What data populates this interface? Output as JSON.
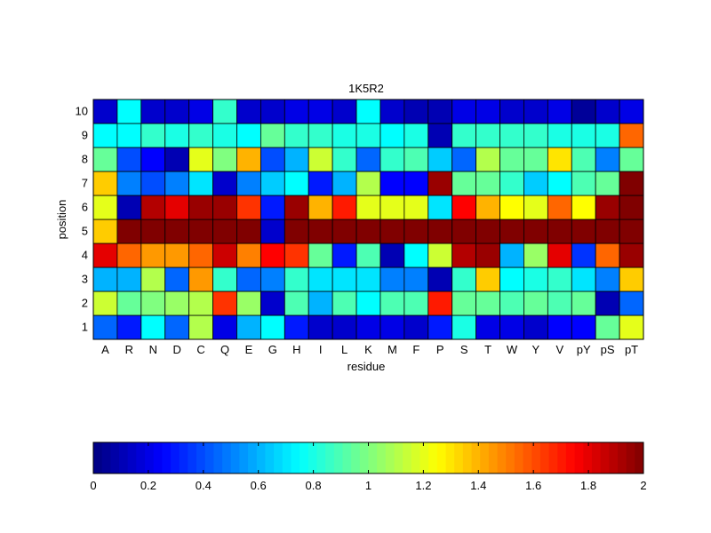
{
  "chart_data": {
    "type": "heatmap",
    "title": "1K5R2",
    "xlabel": "residue",
    "ylabel": "position",
    "x_categories": [
      "A",
      "R",
      "N",
      "D",
      "C",
      "Q",
      "E",
      "G",
      "H",
      "I",
      "L",
      "K",
      "M",
      "F",
      "P",
      "S",
      "T",
      "W",
      "Y",
      "V",
      "pY",
      "pS",
      "pT"
    ],
    "y_categories": [
      "1",
      "2",
      "3",
      "4",
      "5",
      "6",
      "7",
      "8",
      "9",
      "10"
    ],
    "value_range": [
      0,
      2
    ],
    "colormap": "jet",
    "colorbar": {
      "orientation": "horizontal",
      "position": "bottom",
      "ticks": [
        0,
        0.2,
        0.4,
        0.6,
        0.8,
        1,
        1.2,
        1.4,
        1.6,
        1.8,
        2
      ],
      "tick_labels": [
        "0",
        "0.2",
        "0.4",
        "0.6",
        "0.8",
        "1",
        "1.2",
        "1.4",
        "1.6",
        "1.8",
        "2"
      ]
    },
    "values": [
      [
        0.45,
        0.3,
        0.75,
        0.45,
        1.1,
        0.2,
        0.6,
        0.75,
        0.3,
        0.15,
        0.15,
        0.2,
        0.2,
        0.15,
        0.3,
        0.8,
        0.2,
        0.2,
        0.15,
        0.25,
        0.25,
        0.95,
        1.2
      ],
      [
        1.15,
        0.95,
        1.0,
        1.05,
        1.1,
        1.65,
        1.05,
        0.15,
        0.9,
        0.6,
        0.9,
        0.75,
        0.9,
        0.9,
        1.7,
        0.95,
        0.95,
        0.9,
        0.95,
        0.9,
        0.95,
        0.1,
        0.45
      ],
      [
        0.6,
        0.6,
        1.1,
        0.45,
        1.45,
        0.85,
        0.45,
        0.5,
        0.85,
        0.7,
        0.7,
        0.7,
        0.5,
        0.5,
        0.1,
        0.85,
        1.35,
        0.75,
        0.8,
        0.85,
        0.7,
        0.5,
        1.35
      ],
      [
        1.8,
        1.55,
        1.45,
        1.45,
        1.55,
        1.85,
        1.5,
        1.75,
        1.65,
        0.95,
        0.3,
        0.9,
        0.1,
        0.75,
        1.15,
        1.9,
        1.95,
        0.6,
        1.05,
        1.8,
        0.35,
        1.55,
        1.95
      ],
      [
        1.35,
        2.0,
        2.0,
        2.0,
        2.0,
        2.0,
        2.0,
        0.15,
        2.0,
        2.0,
        2.0,
        2.0,
        2.0,
        2.0,
        2.0,
        2.0,
        2.0,
        2.0,
        2.0,
        2.0,
        2.0,
        2.0,
        2.0
      ],
      [
        1.2,
        0.1,
        1.9,
        1.8,
        1.95,
        1.95,
        1.65,
        0.3,
        1.95,
        1.4,
        1.7,
        1.2,
        1.2,
        1.2,
        0.7,
        1.75,
        1.4,
        1.25,
        1.2,
        1.55,
        1.25,
        1.95,
        2.0
      ],
      [
        1.35,
        0.5,
        0.4,
        0.5,
        0.7,
        0.15,
        0.5,
        0.65,
        0.75,
        0.3,
        0.6,
        1.1,
        0.25,
        0.25,
        1.95,
        0.95,
        0.95,
        0.85,
        0.65,
        0.75,
        0.9,
        0.95,
        2.0
      ],
      [
        0.95,
        0.4,
        0.25,
        0.1,
        1.2,
        1.0,
        1.4,
        0.4,
        0.6,
        1.15,
        0.85,
        0.45,
        0.85,
        0.9,
        0.65,
        0.45,
        1.1,
        0.95,
        0.95,
        1.3,
        0.9,
        0.5,
        0.95
      ],
      [
        0.75,
        0.75,
        0.85,
        0.8,
        0.85,
        0.8,
        0.75,
        0.95,
        0.85,
        0.85,
        0.8,
        0.8,
        0.75,
        0.8,
        0.1,
        0.85,
        0.85,
        0.85,
        0.85,
        0.8,
        0.8,
        0.8,
        1.55
      ],
      [
        0.15,
        0.75,
        0.15,
        0.15,
        0.2,
        0.85,
        0.15,
        0.15,
        0.2,
        0.2,
        0.15,
        0.75,
        0.15,
        0.1,
        0.1,
        0.2,
        0.2,
        0.15,
        0.15,
        0.2,
        0.05,
        0.15,
        0.2
      ]
    ]
  }
}
